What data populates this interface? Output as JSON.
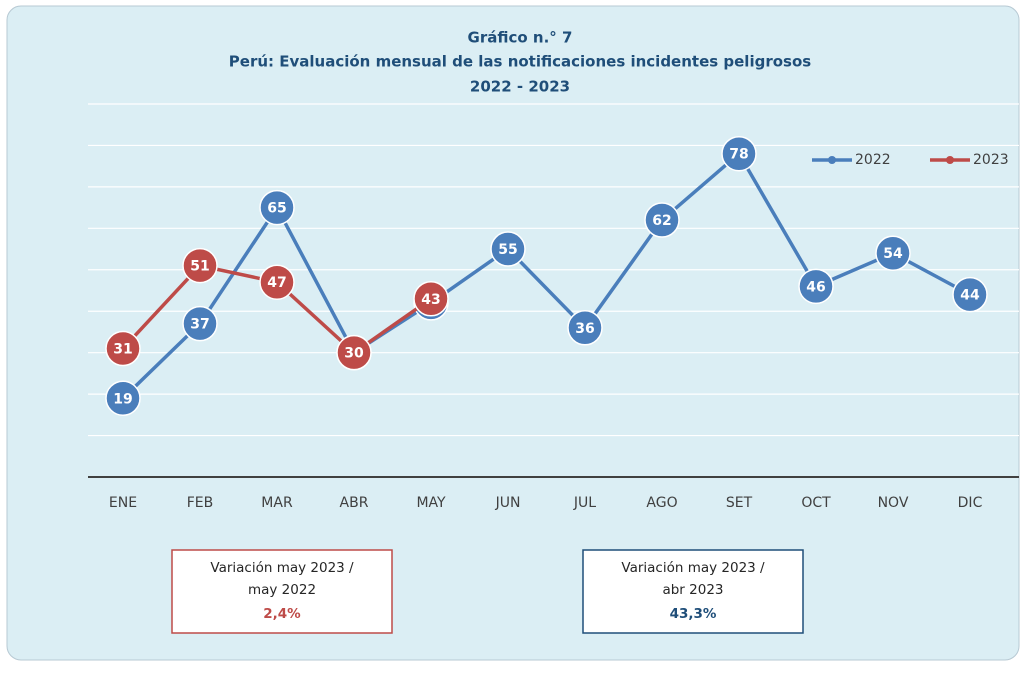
{
  "chart_data": {
    "type": "line",
    "title": [
      "Gráfico n.° 7",
      "Perú: Evaluación mensual de las notificaciones incidentes peligrosos",
      "2022 - 2023"
    ],
    "categories": [
      "ENE",
      "FEB",
      "MAR",
      "ABR",
      "MAY",
      "JUN",
      "JUL",
      "AGO",
      "SET",
      "OCT",
      "NOV",
      "DIC"
    ],
    "series": [
      {
        "name": "2022",
        "color": "#4a7ebb",
        "values": [
          19,
          37,
          65,
          30,
          42,
          55,
          36,
          62,
          78,
          46,
          54,
          44
        ]
      },
      {
        "name": "2023",
        "color": "#be4b48",
        "values": [
          31,
          51,
          47,
          30,
          43,
          null,
          null,
          null,
          null,
          null,
          null,
          null
        ]
      }
    ],
    "ylim": [
      0,
      90
    ],
    "yticks": [
      0,
      10,
      20,
      30,
      40,
      50,
      60,
      70,
      80,
      90
    ],
    "grid": true,
    "legend": "top-right",
    "annotations": [
      {
        "lines": [
          "Variación may 2023 /",
          "may  2022"
        ],
        "value": "2,4%",
        "color": "#be4b48"
      },
      {
        "lines": [
          "Variación may 2023 /",
          "abr 2023"
        ],
        "value": "43,3%",
        "color": "#1f4e79"
      }
    ]
  }
}
